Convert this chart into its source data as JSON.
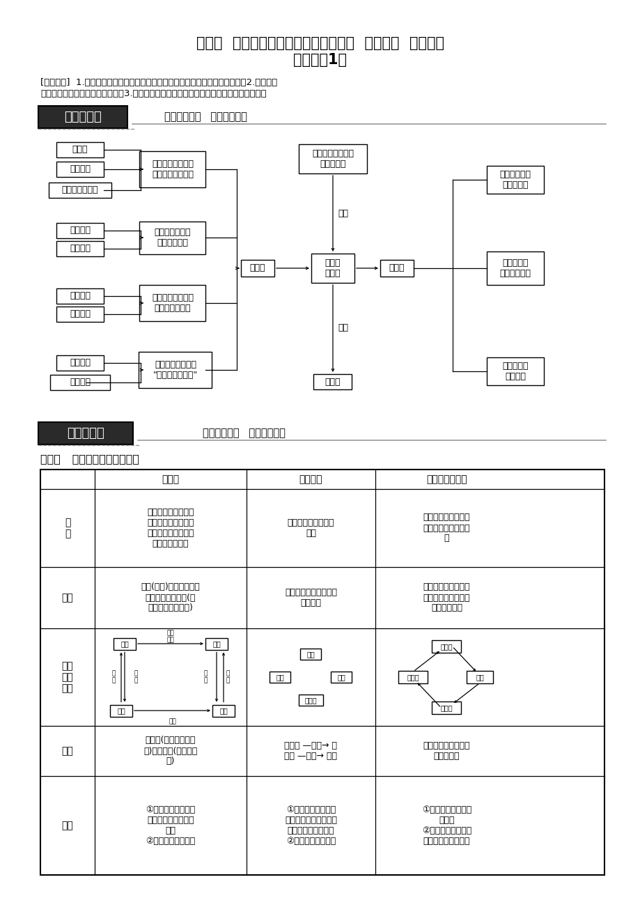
{
  "title_line1": "第五章  自然地理环境的整体性与差异性  章末总结  学案（人",
  "title_line2": "教版必修1）",
  "study_line1": "[学习目标]  1.了解自然地理环境的组成要素及各要素间相互作用产生的新功能。2.掌握自然",
  "study_line2": "地理环境的整体性和差异性规律。3.运用整体性和差异性规律分析评价人类的生产和生活。",
  "sec1_title": "网络构建区",
  "sec1_sub": "梳理知识体系   钩玄内容纲要",
  "sec2_title": "专题探究区",
  "sec2_sub": "解读重点难点   精讲方法技巧",
  "topic1": "专题一   地理环境三大循环对比",
  "map_boxes_col1": [
    "水循环",
    "生物循环",
    "岩石圈物质循环"
  ],
  "map_boxes_col2a": "地理要素间进行着\n物质与能量的交换",
  "map_boxes_col1b": [
    "生产功能",
    "平衡功能"
  ],
  "map_boxes_col2b": "地理要素相互作\n用产生新功能",
  "map_boxes_col1c": [
    "气候变化",
    "地貌变化"
  ],
  "map_boxes_col2c": "自然地理环境具有\n统一的演化过程",
  "map_boxes_col1d": [
    "森林破坏",
    "植树种草"
  ],
  "map_boxes_col2d": "地理要素的变化会\n\"牵一发而动全身\"",
  "box_zhengti": "整体性",
  "box_ziran": "自然地\n理环境",
  "box_chay": "差异性",
  "box_daqi": "大气、水、岩石、\n生物、土壤",
  "box_ziran_dai": "自然带",
  "label_zucheng": "组成",
  "label_huafen": "划分",
  "right_boxes": [
    "由赤道到两极\n的地域分异",
    "从沿海向内\n陆的地域分异",
    "山地的垂直\n地域分异"
  ],
  "table_headers": [
    "",
    "水循环",
    "生物循环",
    "岩石圈物质循环"
  ],
  "row0_label": "概\n念",
  "row0_c1": "自然界的水在水圈、\n大气圈、岩石圈、生\n物圈中通过各个环节\n连续运动的过程",
  "row0_c2": "有机质的合成与分解\n过程",
  "row0_c3": "从岩浆到各类岩石，\n再到新岩浆的产生过\n程",
  "row1_label": "环节",
  "row1_c1": "蒸发(蒸腾)、水汽输送、\n降水、下渗、径流(地\n表径流、地下径流)",
  "row1_c2": "呼吸作用、光合作用、\n分解作用",
  "row1_c3": "冷却凝固、风化、侵\n蚀、搬运、堆积、变\n质、重熔再生",
  "row2_label": "物质\n循环\n简图",
  "row3_label": "能量",
  "row3_c1": "太阳能(蒸发、水汽输\n送)、重力能(降水、径\n流)",
  "row3_c2": "太阳能 —合成→ 化\n学能 —分解→ 热能",
  "row3_c3": "地球内部热能、太阳\n能、重力能",
  "row4_label": "意义",
  "row4_c1": "①使水体不断更新，\n维持全球水的动态平\n衡；\n②缓解不同纬度热量",
  "row4_c2": "①促进自然界物质和\n化学元素的迁移运动，\n能量的流动、转化；\n②联系自然地理环境",
  "row4_c3": "①形成了丰富的矿产\n资源；\n②改变了地表形态，\n塑造了各种自然景观"
}
